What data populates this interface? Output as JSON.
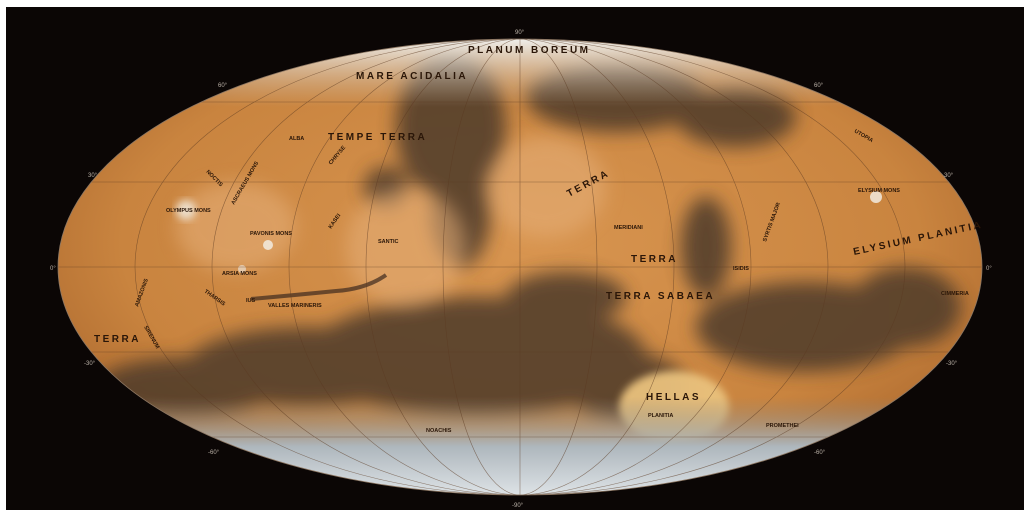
{
  "map": {
    "projection_shape": "ellipse",
    "colors": {
      "background": "#0b0605",
      "surface": "#d08a45",
      "dark_albedo": "#4a3a2c",
      "polar_cap": "#e8ecef",
      "hellas_basin": "#e8c07a"
    },
    "latitude_ticks": {
      "lat_90n": "90°",
      "lat_60n_left": "60°",
      "lat_60n_right": "60°",
      "lat_30n_left": "30°",
      "lat_30n_right": "30°",
      "eq_left": "0°",
      "eq_right": "0°",
      "lat_30s_left": "-30°",
      "lat_30s_right": "-30°",
      "lat_60s_left": "-60°",
      "lat_60s_right": "-60°",
      "lat_90s": "-90°"
    },
    "labels": {
      "boreum": "PLANUM BOREUM",
      "acidalia": "MARE ACIDALIA",
      "tempe": "TEMPE TERRA",
      "terra_mid": "TERRA",
      "arabia": "TERRA",
      "sabaea": "TERRA SABAEA",
      "elysium_planitia": "ELYSIUM PLANITIA",
      "hellas": "HELLAS",
      "hellas_planitia": "PLANITIA",
      "terra_left": "TERRA",
      "sirenum": "SIRENUM",
      "olympus": "OLYMPUS MONS",
      "arsia": "ARSIA MONS",
      "pavonis": "PAVONIS MONS",
      "ascraeus": "ASCRAEUS MONS",
      "tharsis": "THARSIS",
      "alba": "ALBA",
      "ius": "IUS",
      "noctis": "NOCTIS",
      "elysium_mons": "ELYSIUM MONS",
      "santic": "SANTIC",
      "valles": "VALLES MARINERIS",
      "isidis": "ISIDIS",
      "syrtis": "SYRTIS MAJOR",
      "cimmeria": "CIMMERIA",
      "noachis": "NOACHIS",
      "promethei": "PROMETHEI",
      "meridiani": "MERIDIANI",
      "utopia": "UTOPIA",
      "chryse": "CHRYSE",
      "amazonis": "AMAZONIS",
      "kasei": "KASEI"
    }
  }
}
